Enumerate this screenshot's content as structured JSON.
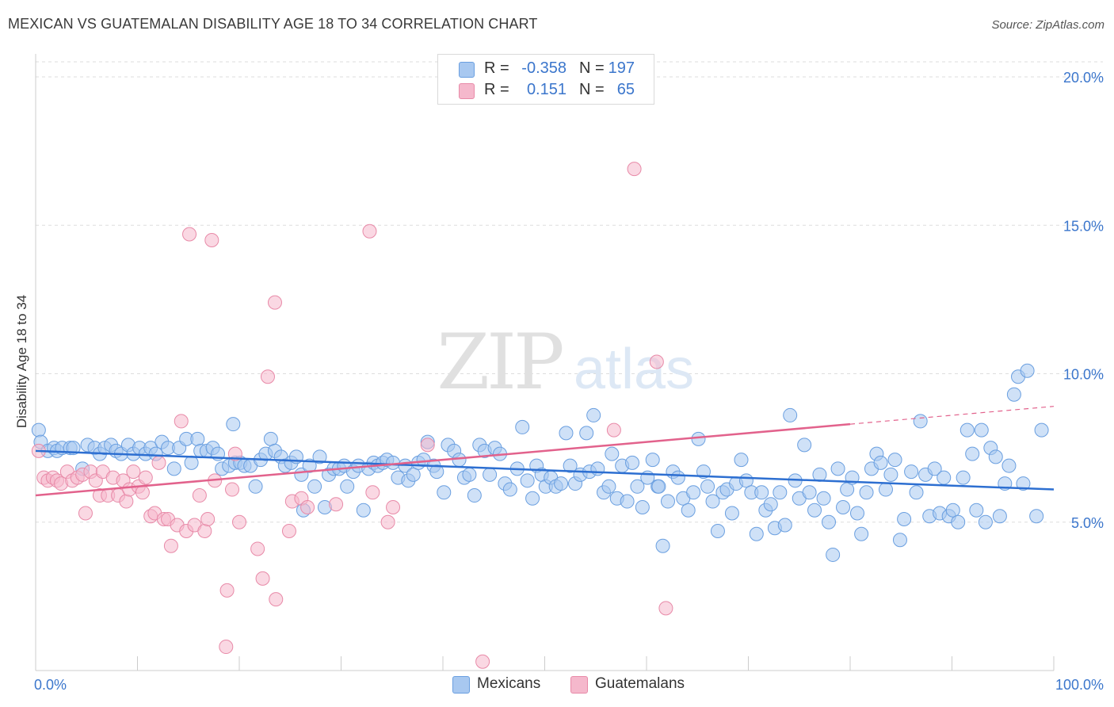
{
  "header": {
    "title": "MEXICAN VS GUATEMALAN DISABILITY AGE 18 TO 34 CORRELATION CHART",
    "source": "Source: ZipAtlas.com"
  },
  "watermark": {
    "zip": "ZIP",
    "atlas": "atlas"
  },
  "stats_legend": {
    "rows": [
      {
        "r_label": "R =",
        "r_value": "-0.358",
        "n_label": "N =",
        "n_value": "197",
        "color": "#a8c8f0"
      },
      {
        "r_label": "R =",
        "r_value": "0.151",
        "n_label": "N =",
        "n_value": "65",
        "color": "#f5b8cc"
      }
    ]
  },
  "bottom_legend": {
    "items": [
      {
        "label": "Mexicans",
        "color": "#a8c8f0"
      },
      {
        "label": "Guatemalans",
        "color": "#f5b8cc"
      }
    ]
  },
  "chart_data": {
    "type": "scatter",
    "xlabel": "",
    "ylabel": "Disability Age 18 to 34",
    "xlim": [
      0,
      100
    ],
    "ylim": [
      0,
      20
    ],
    "x_tick_labels": [
      "0.0%",
      "100.0%"
    ],
    "y_tick_labels": [
      "5.0%",
      "10.0%",
      "15.0%",
      "20.0%"
    ],
    "y_ticks": [
      5,
      10,
      15,
      20
    ],
    "grid": "horizontal dashed",
    "series": [
      {
        "name": "Mexicans",
        "color": "#a8c8f0",
        "stroke": "#6a9fe0",
        "trend": {
          "x": [
            0,
            100
          ],
          "y": [
            7.4,
            6.1
          ],
          "color": "#2d6fd1"
        },
        "points": [
          [
            0.3,
            8.1
          ],
          [
            0.5,
            7.7
          ],
          [
            1.2,
            7.4
          ],
          [
            1.8,
            7.5
          ],
          [
            2.1,
            7.4
          ],
          [
            2.6,
            7.5
          ],
          [
            3.4,
            7.5
          ],
          [
            3.7,
            7.5
          ],
          [
            4.6,
            6.8
          ],
          [
            5.1,
            7.6
          ],
          [
            5.8,
            7.5
          ],
          [
            6.3,
            7.3
          ],
          [
            6.8,
            7.5
          ],
          [
            7.4,
            7.6
          ],
          [
            7.9,
            7.4
          ],
          [
            8.4,
            7.3
          ],
          [
            9.1,
            7.6
          ],
          [
            9.6,
            7.3
          ],
          [
            10.2,
            7.5
          ],
          [
            10.8,
            7.3
          ],
          [
            11.3,
            7.5
          ],
          [
            11.8,
            7.3
          ],
          [
            12.4,
            7.7
          ],
          [
            13.0,
            7.5
          ],
          [
            13.6,
            6.8
          ],
          [
            14.1,
            7.5
          ],
          [
            14.8,
            7.8
          ],
          [
            15.3,
            7.0
          ],
          [
            15.9,
            7.8
          ],
          [
            16.2,
            7.4
          ],
          [
            16.8,
            7.4
          ],
          [
            17.4,
            7.5
          ],
          [
            17.9,
            7.3
          ],
          [
            18.3,
            6.8
          ],
          [
            19.0,
            6.9
          ],
          [
            19.6,
            7.0
          ],
          [
            19.4,
            8.3
          ],
          [
            20.1,
            7.0
          ],
          [
            20.5,
            6.9
          ],
          [
            21.1,
            6.9
          ],
          [
            21.6,
            6.2
          ],
          [
            22.1,
            7.1
          ],
          [
            22.6,
            7.3
          ],
          [
            23.1,
            7.8
          ],
          [
            23.5,
            7.4
          ],
          [
            24.1,
            7.2
          ],
          [
            24.5,
            6.9
          ],
          [
            25.1,
            7.0
          ],
          [
            25.6,
            7.2
          ],
          [
            26.1,
            6.6
          ],
          [
            26.3,
            5.4
          ],
          [
            26.9,
            6.9
          ],
          [
            27.4,
            6.2
          ],
          [
            27.9,
            7.2
          ],
          [
            28.4,
            5.5
          ],
          [
            28.8,
            6.6
          ],
          [
            29.3,
            6.8
          ],
          [
            29.8,
            6.8
          ],
          [
            30.3,
            6.9
          ],
          [
            30.6,
            6.2
          ],
          [
            31.2,
            6.7
          ],
          [
            31.7,
            6.9
          ],
          [
            32.2,
            5.4
          ],
          [
            32.7,
            6.8
          ],
          [
            33.2,
            7.0
          ],
          [
            33.6,
            6.9
          ],
          [
            34.1,
            7.0
          ],
          [
            34.5,
            7.1
          ],
          [
            35.1,
            7.0
          ],
          [
            35.6,
            6.5
          ],
          [
            36.3,
            6.9
          ],
          [
            36.6,
            6.4
          ],
          [
            37.1,
            6.6
          ],
          [
            37.6,
            7.0
          ],
          [
            38.1,
            7.1
          ],
          [
            38.5,
            7.7
          ],
          [
            39.1,
            6.9
          ],
          [
            39.4,
            6.7
          ],
          [
            40.1,
            6.0
          ],
          [
            40.5,
            7.6
          ],
          [
            41.1,
            7.4
          ],
          [
            41.6,
            7.1
          ],
          [
            42.1,
            6.5
          ],
          [
            42.6,
            6.6
          ],
          [
            43.1,
            5.9
          ],
          [
            43.6,
            7.6
          ],
          [
            44.1,
            7.4
          ],
          [
            44.6,
            6.6
          ],
          [
            45.1,
            7.5
          ],
          [
            45.6,
            7.3
          ],
          [
            46.1,
            6.3
          ],
          [
            46.6,
            6.1
          ],
          [
            47.3,
            6.8
          ],
          [
            47.8,
            8.2
          ],
          [
            48.3,
            6.4
          ],
          [
            48.8,
            5.8
          ],
          [
            49.2,
            6.9
          ],
          [
            49.7,
            6.6
          ],
          [
            50.1,
            6.2
          ],
          [
            50.6,
            6.5
          ],
          [
            51.1,
            6.2
          ],
          [
            51.6,
            6.3
          ],
          [
            52.1,
            8.0
          ],
          [
            52.5,
            6.9
          ],
          [
            53.0,
            6.3
          ],
          [
            53.5,
            6.6
          ],
          [
            54.1,
            8.0
          ],
          [
            54.4,
            6.7
          ],
          [
            54.8,
            8.6
          ],
          [
            55.2,
            6.8
          ],
          [
            55.8,
            6.0
          ],
          [
            56.3,
            6.2
          ],
          [
            56.6,
            7.3
          ],
          [
            57.1,
            5.8
          ],
          [
            57.6,
            6.9
          ],
          [
            58.1,
            5.7
          ],
          [
            58.6,
            7.0
          ],
          [
            59.1,
            6.2
          ],
          [
            59.6,
            5.5
          ],
          [
            60.1,
            6.5
          ],
          [
            60.6,
            7.1
          ],
          [
            61.1,
            6.2
          ],
          [
            61.6,
            4.2
          ],
          [
            62.1,
            5.7
          ],
          [
            62.6,
            6.7
          ],
          [
            63.1,
            6.5
          ],
          [
            63.6,
            5.8
          ],
          [
            64.1,
            5.4
          ],
          [
            64.6,
            6.0
          ],
          [
            65.1,
            7.8
          ],
          [
            65.6,
            6.7
          ],
          [
            66.0,
            6.2
          ],
          [
            66.5,
            5.7
          ],
          [
            67.0,
            4.7
          ],
          [
            67.5,
            6.0
          ],
          [
            67.9,
            6.1
          ],
          [
            68.4,
            5.3
          ],
          [
            68.8,
            6.3
          ],
          [
            69.3,
            7.1
          ],
          [
            69.8,
            6.4
          ],
          [
            70.3,
            6.0
          ],
          [
            70.8,
            4.6
          ],
          [
            71.3,
            6.0
          ],
          [
            71.7,
            5.4
          ],
          [
            72.2,
            5.6
          ],
          [
            72.6,
            4.8
          ],
          [
            73.1,
            6.0
          ],
          [
            73.6,
            4.9
          ],
          [
            74.1,
            8.6
          ],
          [
            74.6,
            6.4
          ],
          [
            75.0,
            5.8
          ],
          [
            75.5,
            7.6
          ],
          [
            76.0,
            6.0
          ],
          [
            76.5,
            5.4
          ],
          [
            77.0,
            6.6
          ],
          [
            77.4,
            5.8
          ],
          [
            77.9,
            5.0
          ],
          [
            78.3,
            3.9
          ],
          [
            78.8,
            6.8
          ],
          [
            79.3,
            5.5
          ],
          [
            79.7,
            6.1
          ],
          [
            80.2,
            6.5
          ],
          [
            80.7,
            5.3
          ],
          [
            81.1,
            4.6
          ],
          [
            81.6,
            6.0
          ],
          [
            82.1,
            6.8
          ],
          [
            82.6,
            7.3
          ],
          [
            83.0,
            7.0
          ],
          [
            83.5,
            6.1
          ],
          [
            84.0,
            6.6
          ],
          [
            84.4,
            7.1
          ],
          [
            84.9,
            4.4
          ],
          [
            85.3,
            5.1
          ],
          [
            86.0,
            6.7
          ],
          [
            86.5,
            6.0
          ],
          [
            86.9,
            8.4
          ],
          [
            87.4,
            6.6
          ],
          [
            87.8,
            5.2
          ],
          [
            88.3,
            6.8
          ],
          [
            88.8,
            5.3
          ],
          [
            89.2,
            6.5
          ],
          [
            89.7,
            5.2
          ],
          [
            90.1,
            5.4
          ],
          [
            90.6,
            5.0
          ],
          [
            91.1,
            6.5
          ],
          [
            91.5,
            8.1
          ],
          [
            92.0,
            7.3
          ],
          [
            92.4,
            5.4
          ],
          [
            92.9,
            8.1
          ],
          [
            93.3,
            5.0
          ],
          [
            93.8,
            7.5
          ],
          [
            94.3,
            7.2
          ],
          [
            94.7,
            5.2
          ],
          [
            95.2,
            6.3
          ],
          [
            95.6,
            6.9
          ],
          [
            96.1,
            9.3
          ],
          [
            96.5,
            9.9
          ],
          [
            97.0,
            6.3
          ],
          [
            97.4,
            10.1
          ],
          [
            98.3,
            5.2
          ],
          [
            98.8,
            8.1
          ],
          [
            61.2,
            6.2
          ]
        ]
      },
      {
        "name": "Guatemalans",
        "color": "#f5b8cc",
        "stroke": "#e88aa8",
        "trend": {
          "x": [
            0,
            80
          ],
          "y": [
            5.9,
            8.3
          ],
          "dashed_to": [
            100,
            8.9
          ],
          "color": "#e2628c"
        },
        "points": [
          [
            0.3,
            7.4
          ],
          [
            0.8,
            6.5
          ],
          [
            1.2,
            6.4
          ],
          [
            1.7,
            6.5
          ],
          [
            2.1,
            6.4
          ],
          [
            2.5,
            6.3
          ],
          [
            3.1,
            6.7
          ],
          [
            3.6,
            6.4
          ],
          [
            4.1,
            6.5
          ],
          [
            4.6,
            6.6
          ],
          [
            4.9,
            5.3
          ],
          [
            5.4,
            6.7
          ],
          [
            5.9,
            6.4
          ],
          [
            6.3,
            5.9
          ],
          [
            6.6,
            6.7
          ],
          [
            7.1,
            5.9
          ],
          [
            7.6,
            6.5
          ],
          [
            8.1,
            5.9
          ],
          [
            8.6,
            6.4
          ],
          [
            8.9,
            5.7
          ],
          [
            9.2,
            6.1
          ],
          [
            9.6,
            6.7
          ],
          [
            10.1,
            6.2
          ],
          [
            10.5,
            6.0
          ],
          [
            10.8,
            6.5
          ],
          [
            11.3,
            5.2
          ],
          [
            11.7,
            5.3
          ],
          [
            12.1,
            7.0
          ],
          [
            12.6,
            5.1
          ],
          [
            13.0,
            5.1
          ],
          [
            13.3,
            4.2
          ],
          [
            13.9,
            4.9
          ],
          [
            14.3,
            8.4
          ],
          [
            14.8,
            4.7
          ],
          [
            15.1,
            14.7
          ],
          [
            15.6,
            4.9
          ],
          [
            16.1,
            5.9
          ],
          [
            16.6,
            4.7
          ],
          [
            16.9,
            5.1
          ],
          [
            17.3,
            14.5
          ],
          [
            17.6,
            6.4
          ],
          [
            18.8,
            2.7
          ],
          [
            19.3,
            6.1
          ],
          [
            19.6,
            7.3
          ],
          [
            20.0,
            5.0
          ],
          [
            18.7,
            0.8
          ],
          [
            21.8,
            4.1
          ],
          [
            22.3,
            3.1
          ],
          [
            22.8,
            9.9
          ],
          [
            23.5,
            12.4
          ],
          [
            23.6,
            2.4
          ],
          [
            24.9,
            4.7
          ],
          [
            25.2,
            5.7
          ],
          [
            26.1,
            5.8
          ],
          [
            26.7,
            5.5
          ],
          [
            29.5,
            5.6
          ],
          [
            32.8,
            14.8
          ],
          [
            33.1,
            6.0
          ],
          [
            34.6,
            5.0
          ],
          [
            35.1,
            5.5
          ],
          [
            38.5,
            7.6
          ],
          [
            43.9,
            0.3
          ],
          [
            56.8,
            8.1
          ],
          [
            58.8,
            16.9
          ],
          [
            61.0,
            10.4
          ],
          [
            61.9,
            2.1
          ]
        ]
      }
    ]
  }
}
